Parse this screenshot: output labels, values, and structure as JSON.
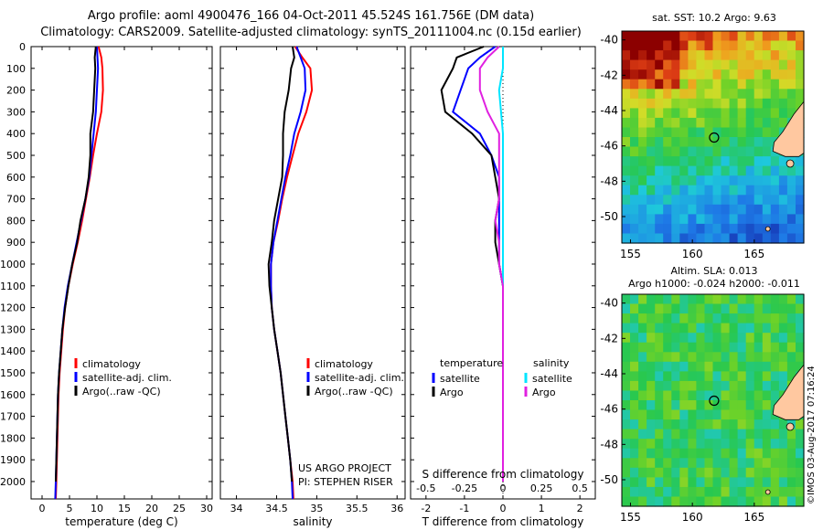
{
  "header": {
    "title_line1": "Argo profile: aoml 4900476_166 04-Oct-2011 45.524S 161.756E (DM data)",
    "title_line2": "Climatology: CARS2009. Satellite-adjusted climatology: synTS_20111004.nc (0.15d earlier)"
  },
  "colors": {
    "climatology": "#ff0000",
    "satellite": "#0000ff",
    "argo": "#000000",
    "satellite_salinity": "#00e5ff",
    "argo_salinity": "#e020e0",
    "land": "#ffc8a0"
  },
  "chart_data": [
    {
      "type": "line",
      "xlabel": "temperature (deg C)",
      "ylabel": "",
      "xlim": [
        -2,
        31
      ],
      "ylim": [
        2080,
        0
      ],
      "xticks": [
        0,
        5,
        10,
        15,
        20,
        25,
        30
      ],
      "yticks": [
        0,
        100,
        200,
        300,
        400,
        500,
        600,
        700,
        800,
        900,
        1000,
        1100,
        1200,
        1300,
        1400,
        1500,
        1600,
        1700,
        1800,
        1900,
        2000
      ],
      "legend": [
        "climatology",
        "satellite-adj. clim.",
        "Argo(..raw -QC)"
      ],
      "legend_position": "lower-center",
      "series": [
        {
          "name": "climatology",
          "color": "red",
          "points": [
            [
              10.3,
              0
            ],
            [
              10.8,
              50
            ],
            [
              11.0,
              100
            ],
            [
              11.1,
              200
            ],
            [
              10.8,
              300
            ],
            [
              10.0,
              400
            ],
            [
              9.3,
              500
            ],
            [
              8.7,
              600
            ],
            [
              8.0,
              700
            ],
            [
              7.3,
              800
            ],
            [
              6.5,
              900
            ],
            [
              5.6,
              1000
            ],
            [
              4.8,
              1100
            ],
            [
              4.2,
              1200
            ],
            [
              3.8,
              1300
            ],
            [
              3.5,
              1400
            ],
            [
              3.2,
              1500
            ],
            [
              3.0,
              1600
            ],
            [
              2.9,
              1700
            ],
            [
              2.8,
              1800
            ],
            [
              2.7,
              1900
            ],
            [
              2.6,
              2000
            ],
            [
              2.5,
              2080
            ]
          ]
        },
        {
          "name": "satellite-adj. clim.",
          "color": "blue",
          "points": [
            [
              10.0,
              0
            ],
            [
              10.1,
              50
            ],
            [
              10.2,
              100
            ],
            [
              10.0,
              200
            ],
            [
              9.8,
              300
            ],
            [
              9.4,
              400
            ],
            [
              9.0,
              500
            ],
            [
              8.6,
              600
            ],
            [
              7.9,
              700
            ],
            [
              7.1,
              800
            ],
            [
              6.3,
              900
            ],
            [
              5.5,
              1000
            ],
            [
              4.7,
              1100
            ],
            [
              4.1,
              1200
            ],
            [
              3.7,
              1300
            ],
            [
              3.4,
              1400
            ],
            [
              3.1,
              1500
            ],
            [
              2.9,
              1600
            ],
            [
              2.8,
              1700
            ],
            [
              2.7,
              1800
            ],
            [
              2.6,
              1900
            ],
            [
              2.5,
              2000
            ],
            [
              2.4,
              2080
            ]
          ]
        },
        {
          "name": "Argo(..raw -QC)",
          "color": "black",
          "points": [
            [
              9.8,
              0
            ],
            [
              9.6,
              50
            ],
            [
              9.7,
              100
            ],
            [
              9.5,
              200
            ],
            [
              9.3,
              300
            ],
            [
              8.8,
              400
            ],
            [
              8.8,
              500
            ],
            [
              8.5,
              600
            ],
            [
              7.9,
              700
            ],
            [
              7.0,
              800
            ],
            [
              6.4,
              900
            ],
            [
              5.5,
              1000
            ],
            [
              4.8,
              1100
            ],
            [
              4.2,
              1200
            ],
            [
              3.7,
              1300
            ],
            [
              3.4,
              1400
            ],
            [
              3.1,
              1500
            ],
            [
              2.9,
              1600
            ],
            [
              2.8,
              1700
            ],
            [
              2.7,
              1800
            ],
            [
              2.6,
              1900
            ],
            [
              2.5,
              2000
            ]
          ]
        }
      ]
    },
    {
      "type": "line",
      "xlabel": "salinity",
      "ylabel": "",
      "xlim": [
        33.8,
        36.1
      ],
      "ylim": [
        2080,
        0
      ],
      "xticks": [
        34,
        34.5,
        35,
        35.5,
        36
      ],
      "yticks": [],
      "legend": [
        "climatology",
        "satellite-adj. clim.",
        "Argo(..raw -QC)"
      ],
      "legend_position": "lower-center",
      "annotation_line1": "US ARGO PROJECT",
      "annotation_line2": "PI: STEPHEN RISER",
      "series": [
        {
          "name": "climatology",
          "color": "red",
          "points": [
            [
              34.73,
              0
            ],
            [
              34.82,
              50
            ],
            [
              34.92,
              100
            ],
            [
              34.94,
              200
            ],
            [
              34.87,
              300
            ],
            [
              34.77,
              400
            ],
            [
              34.7,
              500
            ],
            [
              34.63,
              600
            ],
            [
              34.57,
              700
            ],
            [
              34.52,
              800
            ],
            [
              34.46,
              900
            ],
            [
              34.43,
              1000
            ],
            [
              34.43,
              1100
            ],
            [
              34.44,
              1200
            ],
            [
              34.47,
              1300
            ],
            [
              34.51,
              1400
            ],
            [
              34.55,
              1500
            ],
            [
              34.58,
              1600
            ],
            [
              34.61,
              1700
            ],
            [
              34.64,
              1800
            ],
            [
              34.67,
              1900
            ],
            [
              34.7,
              2000
            ],
            [
              34.71,
              2080
            ]
          ]
        },
        {
          "name": "satellite-adj. clim.",
          "color": "blue",
          "points": [
            [
              34.75,
              0
            ],
            [
              34.8,
              50
            ],
            [
              34.85,
              100
            ],
            [
              34.86,
              200
            ],
            [
              34.8,
              300
            ],
            [
              34.72,
              400
            ],
            [
              34.67,
              500
            ],
            [
              34.61,
              600
            ],
            [
              34.56,
              700
            ],
            [
              34.51,
              800
            ],
            [
              34.46,
              900
            ],
            [
              34.43,
              1000
            ],
            [
              34.43,
              1100
            ],
            [
              34.44,
              1200
            ],
            [
              34.47,
              1300
            ],
            [
              34.51,
              1400
            ],
            [
              34.55,
              1500
            ],
            [
              34.58,
              1600
            ],
            [
              34.61,
              1700
            ],
            [
              34.64,
              1800
            ],
            [
              34.67,
              1900
            ],
            [
              34.69,
              2000
            ],
            [
              34.7,
              2080
            ]
          ]
        },
        {
          "name": "Argo(..raw -QC)",
          "color": "black",
          "points": [
            [
              34.7,
              0
            ],
            [
              34.72,
              50
            ],
            [
              34.68,
              100
            ],
            [
              34.65,
              200
            ],
            [
              34.6,
              300
            ],
            [
              34.58,
              400
            ],
            [
              34.58,
              500
            ],
            [
              34.57,
              600
            ],
            [
              34.52,
              700
            ],
            [
              34.47,
              800
            ],
            [
              34.44,
              900
            ],
            [
              34.4,
              1000
            ],
            [
              34.41,
              1100
            ],
            [
              34.44,
              1200
            ],
            [
              34.47,
              1300
            ],
            [
              34.51,
              1400
            ],
            [
              34.55,
              1500
            ],
            [
              34.58,
              1600
            ],
            [
              34.61,
              1700
            ],
            [
              34.64,
              1800
            ],
            [
              34.67,
              1900
            ],
            [
              34.69,
              2000
            ]
          ]
        }
      ]
    },
    {
      "type": "line",
      "xlabel": "T difference from climatology",
      "xlabel2": "S difference from climatology",
      "xlim": [
        -2.4,
        2.4
      ],
      "ylim": [
        2080,
        0
      ],
      "xticks": [
        -2,
        -1,
        0,
        1,
        2
      ],
      "xticks_top": [
        {
          "v": -2,
          "label": "-0.5"
        },
        {
          "v": -1,
          "label": "-0.25"
        },
        {
          "v": 0,
          "label": "0"
        },
        {
          "v": 1,
          "label": "0.25"
        },
        {
          "v": 2,
          "label": "0.5"
        }
      ],
      "legend_temperature_title": "temperature",
      "legend_salinity_title": "salinity",
      "legend": [
        "satellite",
        "Argo",
        "satellite",
        "Argo"
      ],
      "series": [
        {
          "name": "satellite",
          "group": "temperature",
          "color": "blue",
          "points": [
            [
              -0.2,
              0
            ],
            [
              -0.6,
              50
            ],
            [
              -0.9,
              100
            ],
            [
              -1.1,
              200
            ],
            [
              -1.3,
              300
            ],
            [
              -0.6,
              400
            ],
            [
              -0.3,
              500
            ],
            [
              -0.1,
              600
            ],
            [
              -0.1,
              700
            ],
            [
              -0.1,
              800
            ],
            [
              -0.1,
              900
            ],
            [
              -0.1,
              1000
            ],
            [
              0.0,
              1100
            ],
            [
              0.0,
              1200
            ],
            [
              0.0,
              1300
            ],
            [
              0.0,
              1400
            ]
          ]
        },
        {
          "name": "Argo",
          "group": "temperature",
          "color": "black",
          "points": [
            [
              -0.5,
              0
            ],
            [
              -1.2,
              50
            ],
            [
              -1.3,
              100
            ],
            [
              -1.6,
              200
            ],
            [
              -1.5,
              300
            ],
            [
              -0.8,
              400
            ],
            [
              -0.3,
              500
            ],
            [
              -0.2,
              600
            ],
            [
              -0.1,
              700
            ],
            [
              -0.2,
              800
            ],
            [
              -0.2,
              900
            ],
            [
              -0.1,
              1000
            ],
            [
              0.0,
              1100
            ],
            [
              0.0,
              1200
            ],
            [
              0.0,
              1300
            ],
            [
              0.0,
              1400
            ]
          ]
        },
        {
          "name": "satellite",
          "group": "salinity",
          "color": "cyan",
          "points": [
            [
              0.0,
              0
            ],
            [
              0.0,
              100
            ],
            [
              -0.1,
              200
            ],
            [
              0.0,
              400
            ],
            [
              0.0,
              700
            ],
            [
              0.0,
              1000
            ],
            [
              0.0,
              1400
            ],
            [
              0.0,
              1800
            ],
            [
              0.0,
              2000
            ]
          ]
        },
        {
          "name": "Argo",
          "group": "salinity",
          "color": "magenta",
          "points": [
            [
              -0.1,
              0
            ],
            [
              -0.4,
              50
            ],
            [
              -0.6,
              100
            ],
            [
              -0.6,
              200
            ],
            [
              -0.4,
              300
            ],
            [
              -0.1,
              400
            ],
            [
              -0.1,
              600
            ],
            [
              -0.1,
              700
            ],
            [
              -0.2,
              800
            ],
            [
              -0.1,
              900
            ],
            [
              -0.1,
              1000
            ],
            [
              0.0,
              1100
            ],
            [
              0.0,
              1200
            ],
            [
              0.0,
              1400
            ],
            [
              0.0,
              1600
            ],
            [
              0.0,
              1800
            ],
            [
              0.0,
              2000
            ]
          ]
        }
      ]
    },
    {
      "type": "heatmap",
      "title": "sat. SST: 10.2  Argo: 9.63",
      "xticks": [
        155,
        160,
        165
      ],
      "yticks": [
        -40,
        -42,
        -44,
        -46,
        -48,
        -50
      ],
      "xlim": [
        154.3,
        169
      ],
      "ylim": [
        -51.5,
        -39.5
      ],
      "float_position": [
        161.756,
        -45.524
      ]
    },
    {
      "type": "heatmap",
      "title_line1": "Altim. SLA: 0.013",
      "title_line2": "Argo h1000: -0.024  h2000: -0.011",
      "xticks": [
        155,
        160,
        165
      ],
      "yticks": [
        -40,
        -42,
        -44,
        -46,
        -48,
        -50
      ],
      "xlim": [
        154.3,
        169
      ],
      "ylim": [
        -51.5,
        -39.5
      ],
      "float_position": [
        161.756,
        -45.524
      ]
    }
  ],
  "credit": "©IMOS 03-Aug-2017 07:16:24"
}
